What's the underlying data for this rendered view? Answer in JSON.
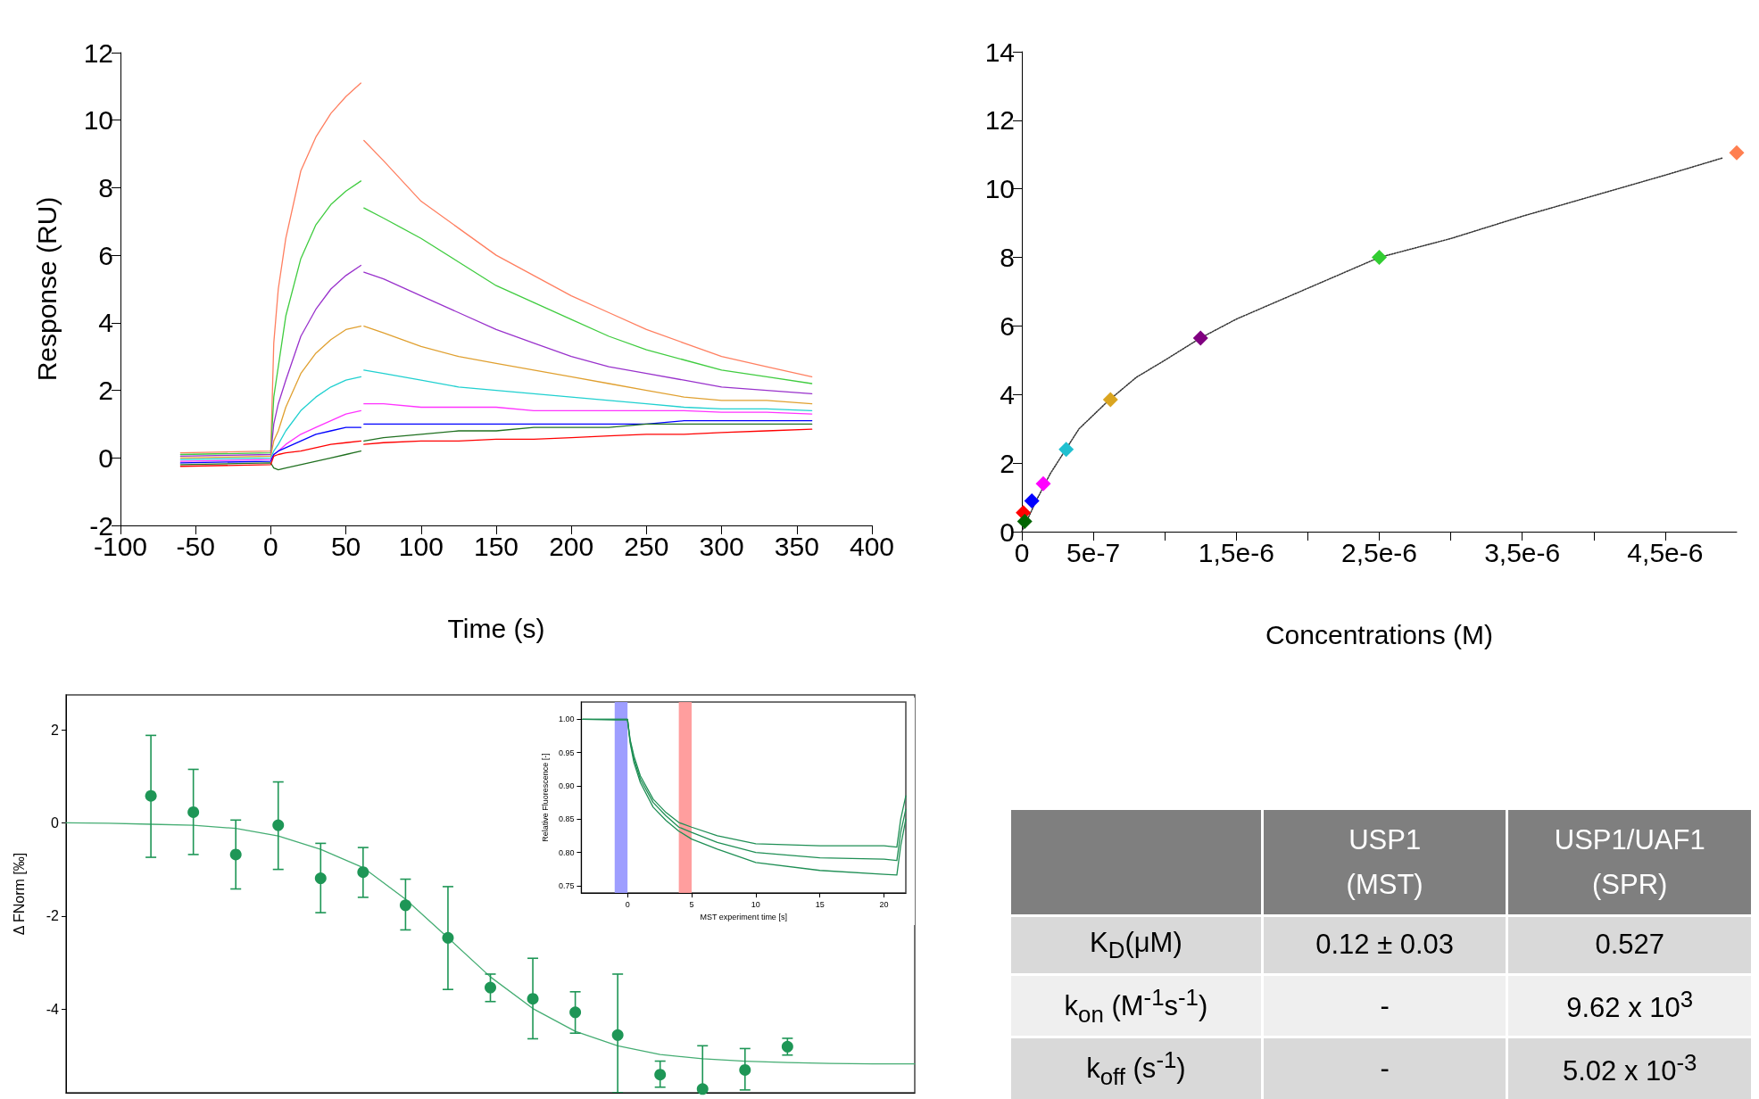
{
  "chart_data": [
    {
      "type": "line",
      "xlabel": "Time (s)",
      "ylabel": "Response (RU)",
      "marker": "none",
      "xlim": [
        -100,
        400
      ],
      "xticks": [
        -100,
        -50,
        0,
        50,
        100,
        150,
        200,
        250,
        300,
        350,
        400
      ],
      "ylim": [
        -2,
        12
      ],
      "yticks": [
        -2,
        0,
        2,
        4,
        6,
        8,
        10,
        12
      ],
      "x": [
        -60,
        0,
        2,
        5,
        10,
        20,
        30,
        40,
        50,
        60,
        61,
        62,
        75,
        100,
        125,
        150,
        175,
        200,
        225,
        250,
        275,
        300,
        330,
        360
      ],
      "series": [
        {
          "color": "#ff7f60",
          "values": [
            0.15,
            0.2,
            3.4,
            5.0,
            6.5,
            8.5,
            9.5,
            10.2,
            10.7,
            11.1,
            null,
            9.4,
            8.8,
            7.6,
            6.8,
            6.0,
            5.4,
            4.8,
            4.3,
            3.8,
            3.4,
            3.0,
            2.7,
            2.4
          ]
        },
        {
          "color": "#40cc40",
          "values": [
            0.1,
            0.15,
            1.8,
            2.7,
            4.2,
            5.9,
            6.9,
            7.5,
            7.9,
            8.2,
            null,
            7.4,
            7.1,
            6.5,
            5.8,
            5.1,
            4.6,
            4.1,
            3.6,
            3.2,
            2.9,
            2.6,
            2.4,
            2.2
          ]
        },
        {
          "color": "#9932cc",
          "values": [
            0.05,
            0.1,
            1.0,
            1.6,
            2.3,
            3.6,
            4.4,
            5.0,
            5.4,
            5.7,
            null,
            5.5,
            5.3,
            4.8,
            4.3,
            3.8,
            3.4,
            3.0,
            2.7,
            2.5,
            2.3,
            2.1,
            2.0,
            1.9
          ]
        },
        {
          "color": "#e0a030",
          "values": [
            0,
            0.05,
            0.5,
            0.8,
            1.5,
            2.5,
            3.1,
            3.5,
            3.8,
            3.9,
            null,
            3.9,
            3.7,
            3.3,
            3.0,
            2.8,
            2.6,
            2.4,
            2.2,
            2.0,
            1.8,
            1.7,
            1.7,
            1.6
          ]
        },
        {
          "color": "#20d0d0",
          "values": [
            -0.05,
            0,
            0.2,
            0.4,
            0.8,
            1.4,
            1.8,
            2.1,
            2.3,
            2.4,
            null,
            2.6,
            2.5,
            2.3,
            2.1,
            2.0,
            1.9,
            1.8,
            1.7,
            1.6,
            1.5,
            1.45,
            1.45,
            1.4
          ]
        },
        {
          "color": "#ff33ff",
          "values": [
            -0.1,
            -0.05,
            0.1,
            0.2,
            0.4,
            0.7,
            0.9,
            1.1,
            1.3,
            1.4,
            null,
            1.6,
            1.6,
            1.5,
            1.5,
            1.5,
            1.4,
            1.4,
            1.4,
            1.4,
            1.4,
            1.35,
            1.35,
            1.3
          ]
        },
        {
          "color": "#0000ff",
          "values": [
            -0.15,
            -0.1,
            0.1,
            0.2,
            0.3,
            0.5,
            0.7,
            0.8,
            0.9,
            0.9,
            null,
            1.0,
            1.0,
            1.0,
            1.0,
            1.0,
            1.0,
            1.0,
            1.0,
            1.0,
            1.1,
            1.1,
            1.1,
            1.1
          ]
        },
        {
          "color": "#207020",
          "values": [
            -0.2,
            -0.15,
            -0.3,
            -0.35,
            -0.3,
            -0.2,
            -0.1,
            0.0,
            0.1,
            0.2,
            null,
            0.5,
            0.6,
            0.7,
            0.8,
            0.8,
            0.9,
            0.9,
            0.9,
            1.0,
            1.0,
            1.0,
            1.0,
            1.0
          ]
        },
        {
          "color": "#ff0000",
          "values": [
            -0.25,
            -0.2,
            0.05,
            0.1,
            0.15,
            0.2,
            0.3,
            0.4,
            0.45,
            0.5,
            null,
            0.4,
            0.45,
            0.5,
            0.5,
            0.55,
            0.55,
            0.6,
            0.65,
            0.7,
            0.7,
            0.75,
            0.8,
            0.85
          ]
        }
      ]
    },
    {
      "type": "scatter",
      "xlabel": "Concentrations (M)",
      "xlim": [
        0,
        5e-06
      ],
      "xticks": [
        0,
        {
          "value": 5e-07,
          "label": "5e-7"
        },
        {
          "value": 1e-06,
          "label": null
        },
        {
          "value": 1.5e-06,
          "label": "1,5e-6"
        },
        {
          "value": 2e-06,
          "label": null
        },
        {
          "value": 2.5e-06,
          "label": "2,5e-6"
        },
        {
          "value": 3e-06,
          "label": null
        },
        {
          "value": 3.5e-06,
          "label": "3,5e-6"
        },
        {
          "value": 4e-06,
          "label": null
        },
        {
          "value": 4.5e-06,
          "label": "4,5e-6"
        }
      ],
      "ylim": [
        0,
        14
      ],
      "yticks": [
        0,
        2,
        4,
        6,
        8,
        10,
        12,
        14
      ],
      "series": [
        {
          "type": "line",
          "color": "#333333",
          "marker": "none",
          "line_style": "dotted",
          "x": [
            0,
            1e-07,
            2e-07,
            3e-07,
            4e-07,
            5e-07,
            6e-07,
            8e-07,
            1e-06,
            1.25e-06,
            1.5e-06,
            2e-06,
            2.5e-06,
            3e-06,
            3.5e-06,
            4e-06,
            4.5e-06,
            4.9e-06
          ],
          "values": [
            0,
            0.9,
            1.7,
            2.35,
            3.0,
            3.4,
            3.8,
            4.5,
            5.0,
            5.65,
            6.2,
            7.1,
            8.0,
            8.55,
            9.2,
            9.8,
            10.4,
            10.9
          ]
        },
        {
          "type": "scatter",
          "marker": "diamond",
          "color": "#800080",
          "x": [
            1e-08,
            2e-08,
            7e-08,
            1.5e-07,
            3.1e-07,
            6.2e-07,
            1.25e-06,
            2.5e-06,
            5e-06
          ],
          "values": [
            0.55,
            0.3,
            0.9,
            1.4,
            2.4,
            3.85,
            5.65,
            8.0,
            11.05
          ],
          "colors": [
            "#ff0000",
            "#006400",
            "#0000ff",
            "#ff00ff",
            "#20c0d0",
            "#daa520",
            "#800080",
            "#32cd32",
            "#ff7f50"
          ]
        }
      ]
    },
    {
      "type": "scatter",
      "ylabel": "Δ FNorm [‰]",
      "tick_labels": "y",
      "ylim": [
        -5.8,
        2.75
      ],
      "yticks": [
        -4,
        -2,
        0,
        2
      ],
      "categories": [
        null,
        null,
        null,
        null,
        null,
        null,
        null,
        null,
        null,
        null,
        null,
        null,
        null,
        null,
        null,
        null,
        null,
        null,
        null,
        null,
        null
      ],
      "series": [
        {
          "type": "line",
          "color": "#45ad73",
          "marker": "none",
          "values": [
            0,
            -0.01,
            -0.03,
            -0.05,
            -0.12,
            -0.28,
            -0.57,
            -0.96,
            -1.64,
            -2.47,
            -3.31,
            -3.99,
            -4.48,
            -4.79,
            -4.98,
            -5.07,
            -5.12,
            -5.15,
            -5.17,
            -5.18,
            -5.18
          ]
        },
        {
          "type": "scatter",
          "color": "#1e9656",
          "marker": "circle",
          "values": [
            null,
            null,
            0.58,
            0.23,
            -0.68,
            -0.05,
            -1.19,
            -1.06,
            -1.77,
            -2.47,
            -3.54,
            -3.78,
            -4.07,
            -4.56,
            -5.41,
            -5.72,
            -5.31,
            -4.81,
            null,
            null,
            null
          ],
          "errors": [
            null,
            null,
            [
              -0.74,
              1.88
            ],
            [
              -0.68,
              1.15
            ],
            [
              -1.42,
              0.06
            ],
            [
              -1.0,
              0.88
            ],
            [
              -1.93,
              -0.44
            ],
            [
              -1.6,
              -0.53
            ],
            [
              -2.3,
              -1.21
            ],
            [
              -3.58,
              -1.37
            ],
            [
              -3.84,
              -3.25
            ],
            [
              -4.64,
              -2.91
            ],
            [
              -4.52,
              -3.63
            ],
            [
              -5.8,
              -3.25
            ],
            [
              -5.68,
              -5.12
            ],
            [
              -5.8,
              -4.79
            ],
            [
              -5.74,
              -4.85
            ],
            [
              -4.99,
              -4.63
            ],
            null,
            null,
            null
          ]
        }
      ]
    },
    {
      "type": "line",
      "xlabel": "MST experiment time [s]",
      "ylabel": "Relative Fluorescence [-]",
      "marker": "none",
      "xlim": [
        -3.6,
        21.7
      ],
      "xticks": [
        0,
        5,
        10,
        15,
        20
      ],
      "ylim": [
        0.739,
        1.026
      ],
      "yticks": [
        {
          "value": 0.75,
          "label": "0.75"
        },
        {
          "value": 0.8,
          "label": "0.80"
        },
        {
          "value": 0.85,
          "label": "0.85"
        },
        {
          "value": 0.9,
          "label": "0.90"
        },
        {
          "value": 0.95,
          "label": "0.95"
        },
        {
          "value": 1,
          "label": "1.00"
        }
      ],
      "bands": [
        {
          "axis": "x",
          "from": -1,
          "to": 0,
          "color": "#9999ff"
        },
        {
          "axis": "x",
          "from": 4,
          "to": 5,
          "color": "#ff9999"
        }
      ],
      "x": [
        -3.5,
        -1,
        0,
        0.2,
        0.5,
        1,
        2,
        3,
        4,
        5,
        7,
        10,
        15,
        20,
        21,
        21.3,
        21.7
      ],
      "series": [
        {
          "color": "#1f8f55",
          "values": [
            1.0,
            1.0,
            1.0,
            0.97,
            0.945,
            0.915,
            0.88,
            0.86,
            0.845,
            0.838,
            0.825,
            0.813,
            0.81,
            0.81,
            0.808,
            0.85,
            0.885
          ]
        },
        {
          "color": "#1f8f55",
          "values": [
            1.0,
            1.0,
            1.0,
            0.968,
            0.94,
            0.91,
            0.875,
            0.855,
            0.838,
            0.83,
            0.815,
            0.8,
            0.792,
            0.79,
            0.788,
            0.83,
            0.865
          ]
        },
        {
          "color": "#1f8f55",
          "values": [
            1.0,
            0.999,
            0.999,
            0.965,
            0.935,
            0.905,
            0.868,
            0.848,
            0.832,
            0.82,
            0.805,
            0.785,
            0.773,
            0.767,
            0.766,
            0.81,
            0.85
          ]
        }
      ]
    },
    {
      "type": "other",
      "categories": [
        null,
        "USP1\n(MST)",
        "USP1/UAF1\n(SPR)"
      ],
      "y_categories": [
        "K$_{D}$(μM)",
        "k$_{on}$ (M$^{-1}$s$^{-1}$)",
        "k$_{off}$ (s$^{-1}$)"
      ],
      "cell_labels": [
        [
          "0.12 ± 0.03",
          "0.527"
        ],
        [
          "-",
          "9.62 x 10$^{3}$"
        ],
        [
          "-",
          "5.02 x 10$^{-3}$"
        ]
      ]
    }
  ]
}
